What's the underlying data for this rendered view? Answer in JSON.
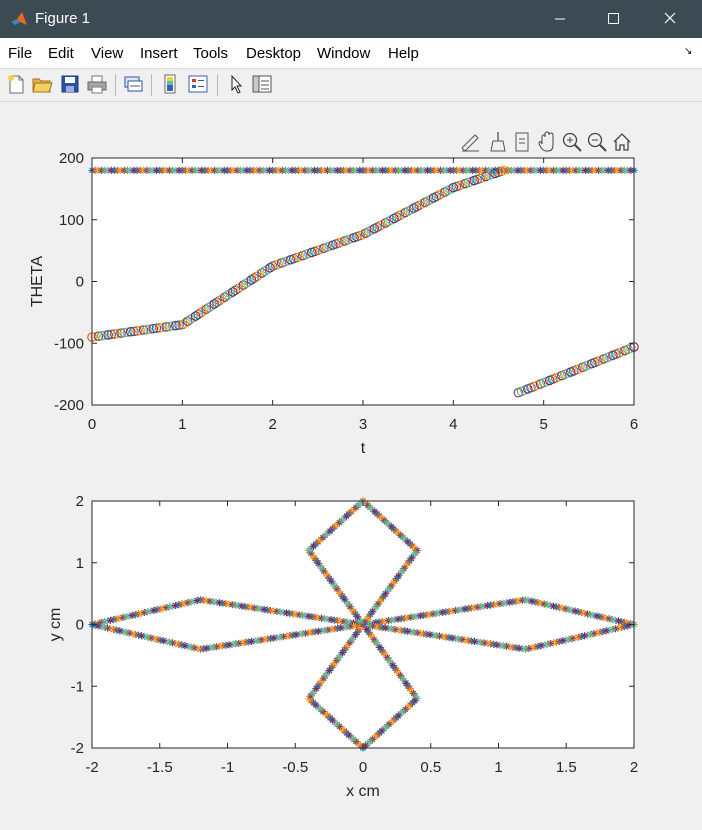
{
  "window": {
    "title": "Figure 1",
    "menu": [
      "File",
      "Edit",
      "View",
      "Insert",
      "Tools",
      "Desktop",
      "Window",
      "Help"
    ],
    "menu_arrow": "↘",
    "toolbar_icons": [
      "new-figure-icon",
      "open-file-icon",
      "save-icon",
      "print-icon",
      "link-plot-icon",
      "colorbar-icon",
      "legend-icon",
      "edit-plot-icon",
      "property-inspector-icon"
    ],
    "axes_toolbar_icons": [
      "data-tips-icon",
      "brush-icon",
      "link-data-icon",
      "pan-icon",
      "zoom-in-icon",
      "zoom-out-icon",
      "home-icon"
    ],
    "colors": {
      "titlebar": "#3c4a54",
      "palette": [
        "#0072bd",
        "#d95319",
        "#edb120",
        "#7e2f8e",
        "#77ac30",
        "#4dbeee",
        "#a2142f"
      ]
    }
  },
  "chart_data": [
    {
      "type": "scatter",
      "title": "",
      "xlabel": "t",
      "ylabel": "THETA",
      "xlim": [
        0,
        6
      ],
      "ylim": [
        -200,
        200
      ],
      "xticks": [
        "0",
        "1",
        "2",
        "3",
        "4",
        "5",
        "6"
      ],
      "yticks": [
        "-200",
        "-100",
        "0",
        "100",
        "200"
      ],
      "grid": false,
      "series": [
        {
          "marker": "asterisk",
          "points": [
            [
              0,
              180
            ],
            [
              1,
              180
            ],
            [
              2,
              180
            ],
            [
              3,
              180
            ],
            [
              4,
              180
            ],
            [
              5,
              180
            ],
            [
              6,
              180
            ]
          ]
        },
        {
          "marker": "circle",
          "points": [
            [
              0,
              -90
            ],
            [
              1,
              -70
            ],
            [
              2,
              25
            ],
            [
              3,
              76
            ],
            [
              4,
              152
            ],
            [
              4.56,
              180
            ]
          ]
        },
        {
          "marker": "circle",
          "points": [
            [
              4.72,
              -180
            ],
            [
              5,
              -164
            ],
            [
              5.5,
              -135
            ],
            [
              6,
              -106
            ]
          ]
        }
      ]
    },
    {
      "type": "scatter",
      "title": "",
      "xlabel": "x cm",
      "ylabel": "y cm",
      "xlim": [
        -2,
        2
      ],
      "ylim": [
        -2,
        2
      ],
      "xticks": [
        "-2",
        "-1.5",
        "-1",
        "-0.5",
        "0",
        "0.5",
        "1",
        "1.5",
        "2"
      ],
      "yticks": [
        "-2",
        "-1",
        "0",
        "1",
        "2"
      ],
      "grid": false,
      "series": [
        {
          "marker": "asterisk",
          "curve": "horizontal-figure-eight",
          "points": [
            [
              -2,
              0
            ],
            [
              -1.2,
              0.4
            ],
            [
              0,
              0
            ],
            [
              1.2,
              0.4
            ],
            [
              2,
              0
            ],
            [
              1.2,
              -0.4
            ],
            [
              0,
              0
            ],
            [
              -1.2,
              -0.4
            ]
          ]
        },
        {
          "marker": "asterisk",
          "curve": "vertical-figure-eight",
          "points": [
            [
              0,
              2
            ],
            [
              0.4,
              1.2
            ],
            [
              0,
              0
            ],
            [
              0.4,
              -1.2
            ],
            [
              0,
              -2
            ],
            [
              -0.4,
              -1.2
            ],
            [
              0,
              0
            ],
            [
              -0.4,
              1.2
            ]
          ]
        }
      ]
    }
  ]
}
